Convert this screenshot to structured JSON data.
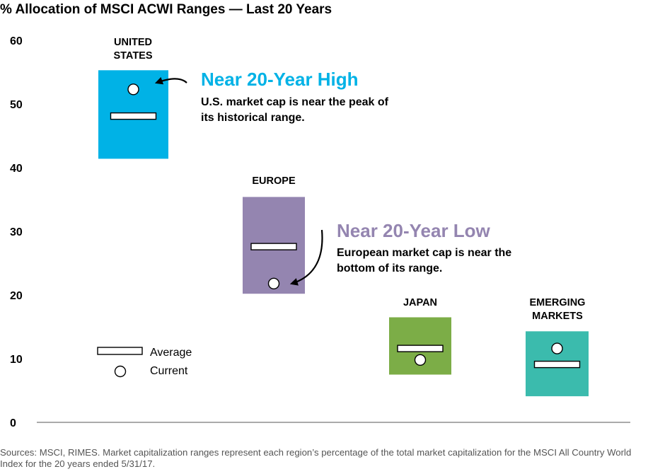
{
  "title": "% Allocation of MSCI ACWI Ranges — Last 20 Years",
  "chart_data": {
    "type": "range",
    "title": "% Allocation of MSCI ACWI Ranges — Last 20 Years",
    "ylim": [
      0,
      60
    ],
    "yticks": [
      0,
      10,
      20,
      30,
      40,
      50,
      60
    ],
    "grid": false,
    "regions": [
      {
        "key": "us",
        "label": [
          "UNITED",
          "STATES"
        ],
        "color": "#00b2e6",
        "min": 41.4,
        "max": 55.3,
        "average": 48.1,
        "current": 52.3
      },
      {
        "key": "europe",
        "label": [
          "EUROPE"
        ],
        "color": "#9485b0",
        "min": 20.2,
        "max": 35.4,
        "average": 27.6,
        "current": 21.8
      },
      {
        "key": "japan",
        "label": [
          "JAPAN"
        ],
        "color": "#7cad47",
        "min": 7.5,
        "max": 16.5,
        "average": 11.6,
        "current": 9.8
      },
      {
        "key": "em",
        "label": [
          "EMERGING",
          "MARKETS"
        ],
        "color": "#3bbbad",
        "min": 4.1,
        "max": 14.3,
        "average": 9.1,
        "current": 11.6
      }
    ],
    "legend": {
      "placement": "bottom-left",
      "average": "Average",
      "current": "Current"
    },
    "annotations": [
      {
        "key": "us",
        "heading": "Near 20-Year High",
        "color": "#00b2e6",
        "lines": [
          "U.S. market cap is near the peak of",
          "its historical range."
        ]
      },
      {
        "key": "europe",
        "heading": "Near 20-Year Low",
        "color": "#9485b0",
        "lines": [
          "European market cap is near the",
          "bottom of its range."
        ]
      }
    ]
  },
  "source": "Sources: MSCI, RIMES. Market capitalization ranges represent each region’s percentage of the total market capitalization for the MSCI All Country World Index for the 20 years ended 5/31/17."
}
